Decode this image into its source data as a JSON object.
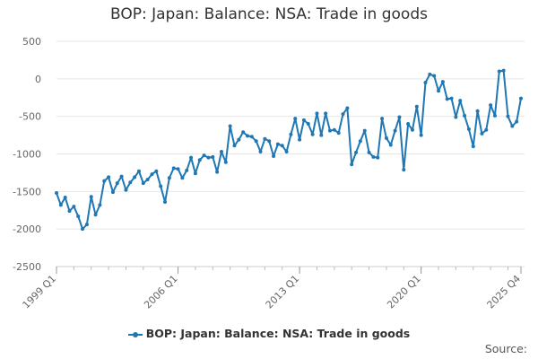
{
  "colors": {
    "series": "#1f77b4",
    "grid": "#e6e6e6",
    "axis_text": "#666666",
    "title_text": "#333333"
  },
  "source_label": "Source:",
  "chart_data": {
    "type": "line",
    "title": "BOP: Japan: Balance: NSA: Trade in goods",
    "xlabel": "",
    "ylabel": "",
    "ylim": [
      -2500,
      500
    ],
    "yticks": [
      500,
      0,
      -500,
      -1000,
      -1500,
      -2000,
      -2500
    ],
    "ytick_labels": [
      "500",
      "0",
      "-500",
      "-1000",
      "-1500",
      "-2000",
      "-2500"
    ],
    "xticks": [
      {
        "index": 0,
        "label": "1999 Q1"
      },
      {
        "index": 28,
        "label": "2006 Q1"
      },
      {
        "index": 56,
        "label": "2013 Q1"
      },
      {
        "index": 84,
        "label": "2020 Q1"
      },
      {
        "index": 107,
        "label": "2025 Q4"
      }
    ],
    "x_start": "1999 Q1",
    "x_end": "2025 Q4",
    "series": [
      {
        "name": "BOP: Japan: Balance: NSA: Trade in goods",
        "values": [
          -1520,
          -1680,
          -1580,
          -1760,
          -1700,
          -1830,
          -2000,
          -1940,
          -1570,
          -1810,
          -1680,
          -1360,
          -1310,
          -1510,
          -1390,
          -1300,
          -1480,
          -1380,
          -1310,
          -1230,
          -1390,
          -1340,
          -1270,
          -1230,
          -1430,
          -1640,
          -1320,
          -1190,
          -1200,
          -1320,
          -1220,
          -1050,
          -1260,
          -1080,
          -1020,
          -1050,
          -1040,
          -1240,
          -970,
          -1110,
          -630,
          -890,
          -810,
          -710,
          -760,
          -770,
          -830,
          -970,
          -800,
          -830,
          -1030,
          -870,
          -890,
          -970,
          -740,
          -530,
          -810,
          -550,
          -600,
          -740,
          -460,
          -750,
          -460,
          -690,
          -680,
          -720,
          -470,
          -390,
          -1140,
          -980,
          -830,
          -690,
          -980,
          -1040,
          -1050,
          -530,
          -790,
          -880,
          -690,
          -510,
          -1210,
          -600,
          -680,
          -370,
          -750,
          -50,
          60,
          40,
          -160,
          -40,
          -270,
          -260,
          -510,
          -290,
          -490,
          -670,
          -900,
          -430,
          -730,
          -680,
          -350,
          -490,
          100,
          110,
          -500,
          -630,
          -570,
          -260
        ]
      }
    ]
  }
}
